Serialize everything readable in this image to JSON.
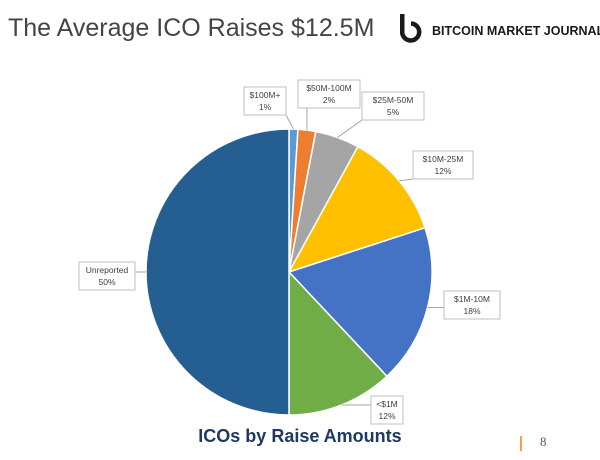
{
  "slide": {
    "title": "The Average ICO Raises $12.5M",
    "brand_name": "BITCOIN MARKET JOURNAL",
    "page_number": "8"
  },
  "chart_data": {
    "type": "pie",
    "title": "ICOs by Raise Amounts",
    "slices": [
      {
        "label": "$100M+",
        "value": 1,
        "pct_label": "1%",
        "color": "#5b9bd5"
      },
      {
        "label": "$50M-100M",
        "value": 2,
        "pct_label": "2%",
        "color": "#ed7d31"
      },
      {
        "label": "$25M-50M",
        "value": 5,
        "pct_label": "5%",
        "color": "#a5a5a5"
      },
      {
        "label": "$10M-25M",
        "value": 12,
        "pct_label": "12%",
        "color": "#ffc000"
      },
      {
        "label": "$1M-10M",
        "value": 18,
        "pct_label": "18%",
        "color": "#4472c4"
      },
      {
        "label": "<$1M",
        "value": 12,
        "pct_label": "12%",
        "color": "#70ad47"
      },
      {
        "label": "Unreported",
        "value": 50,
        "pct_label": "50%",
        "color": "#255e91"
      }
    ],
    "start_angle_deg": 0,
    "direction": "clockwise",
    "labels": "outside-callouts-with-leader-lines",
    "legend": "none"
  }
}
